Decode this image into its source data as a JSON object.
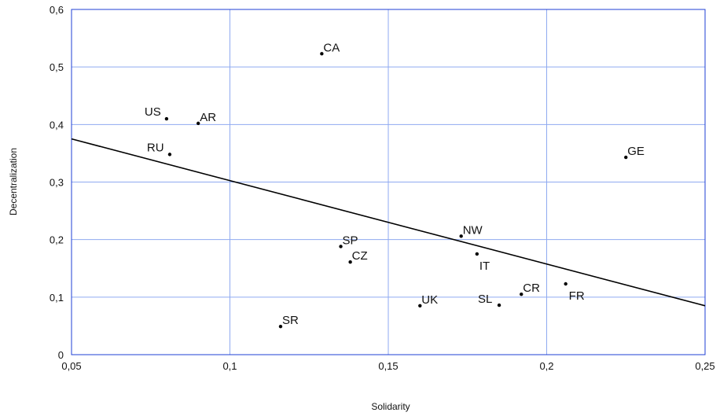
{
  "chart_data": {
    "type": "scatter",
    "title": "",
    "xlabel": "Solidarity",
    "ylabel": "Decentralization",
    "xlim": [
      0.05,
      0.25
    ],
    "ylim": [
      0,
      0.6
    ],
    "grid": true,
    "x_ticks": [
      0.05,
      0.1,
      0.15,
      0.2,
      0.25
    ],
    "y_ticks": [
      0,
      0.1,
      0.2,
      0.3,
      0.4,
      0.5,
      0.6
    ],
    "x_tick_labels": [
      "0,05",
      "0,1",
      "0,15",
      "0,2",
      "0,25"
    ],
    "y_tick_labels": [
      "0",
      "0,1",
      "0,2",
      "0,3",
      "0,4",
      "0,5",
      "0,6"
    ],
    "points": [
      {
        "label": "CA",
        "x": 0.129,
        "y": 0.523
      },
      {
        "label": "US",
        "x": 0.08,
        "y": 0.41
      },
      {
        "label": "AR",
        "x": 0.09,
        "y": 0.402
      },
      {
        "label": "RU",
        "x": 0.081,
        "y": 0.348
      },
      {
        "label": "GE",
        "x": 0.225,
        "y": 0.343
      },
      {
        "label": "NW",
        "x": 0.173,
        "y": 0.206
      },
      {
        "label": "SP",
        "x": 0.135,
        "y": 0.188
      },
      {
        "label": "IT",
        "x": 0.178,
        "y": 0.175
      },
      {
        "label": "CZ",
        "x": 0.138,
        "y": 0.161
      },
      {
        "label": "CR",
        "x": 0.192,
        "y": 0.105
      },
      {
        "label": "FR",
        "x": 0.206,
        "y": 0.123
      },
      {
        "label": "UK",
        "x": 0.16,
        "y": 0.085
      },
      {
        "label": "SL",
        "x": 0.185,
        "y": 0.086
      },
      {
        "label": "SR",
        "x": 0.116,
        "y": 0.049
      }
    ],
    "trendline": {
      "x": [
        0.05,
        0.25
      ],
      "y": [
        0.375,
        0.085
      ]
    },
    "colors": {
      "grid": "#8faaf0",
      "frame": "#1f3fd6",
      "point": "#000000",
      "line": "#000000"
    }
  }
}
